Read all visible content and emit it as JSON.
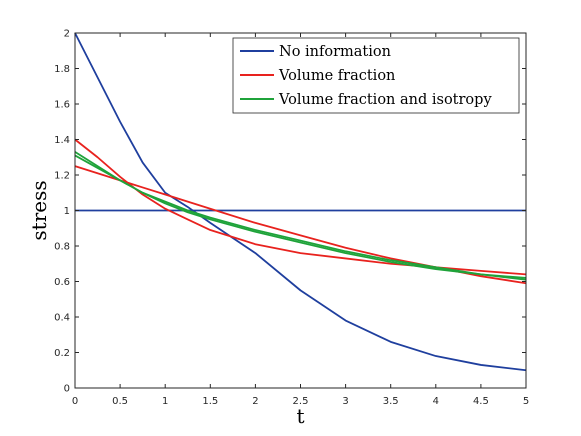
{
  "chart_data": {
    "type": "line",
    "xlabel": "t",
    "ylabel": "stress",
    "xlim": [
      0,
      5
    ],
    "ylim": [
      0,
      2
    ],
    "xticks": [
      "0",
      "0.5",
      "1",
      "1.5",
      "2",
      "2.5",
      "3",
      "3.5",
      "4",
      "4.5",
      "5"
    ],
    "yticks": [
      "0",
      "0.2",
      "0.4",
      "0.6",
      "0.8",
      "1",
      "1.2",
      "1.4",
      "1.6",
      "1.8",
      "2"
    ],
    "grid": false,
    "legend_position": "top-right",
    "legend": [
      "No information",
      "Volume fraction",
      "Volume fraction and isotropy"
    ],
    "colors": {
      "blue": "#1f3f9e",
      "red": "#e8221e",
      "green": "#1fa33a"
    },
    "x": [
      0,
      0.25,
      0.5,
      0.75,
      1,
      1.25,
      1.5,
      2,
      2.5,
      3,
      3.5,
      4,
      4.5,
      5
    ],
    "series": [
      {
        "name": "No information",
        "color": "blue",
        "values": [
          1,
          1,
          1,
          1,
          1,
          1,
          1,
          1,
          1,
          1,
          1,
          1,
          1,
          1
        ]
      },
      {
        "color": "blue",
        "values": [
          2,
          1.75,
          1.5,
          1.27,
          1.1,
          1.02,
          0.93,
          0.76,
          0.55,
          0.38,
          0.26,
          0.18,
          0.13,
          0.1
        ]
      },
      {
        "name": "Volume fraction",
        "color": "red",
        "values": [
          1.25,
          1.21,
          1.17,
          1.13,
          1.09,
          1.05,
          1.01,
          0.93,
          0.86,
          0.79,
          0.73,
          0.68,
          0.63,
          0.59
        ]
      },
      {
        "color": "red",
        "values": [
          1.4,
          1.3,
          1.19,
          1.09,
          1.01,
          0.95,
          0.89,
          0.81,
          0.76,
          0.73,
          0.7,
          0.68,
          0.66,
          0.64
        ]
      },
      {
        "name": "Volume fraction and isotropy",
        "color": "green",
        "values": [
          1.31,
          1.24,
          1.17,
          1.1,
          1.05,
          1.0,
          0.96,
          0.89,
          0.83,
          0.77,
          0.72,
          0.68,
          0.64,
          0.61
        ]
      },
      {
        "color": "green",
        "values": [
          1.33,
          1.25,
          1.17,
          1.1,
          1.04,
          0.99,
          0.95,
          0.88,
          0.82,
          0.76,
          0.71,
          0.67,
          0.64,
          0.62
        ]
      }
    ]
  }
}
